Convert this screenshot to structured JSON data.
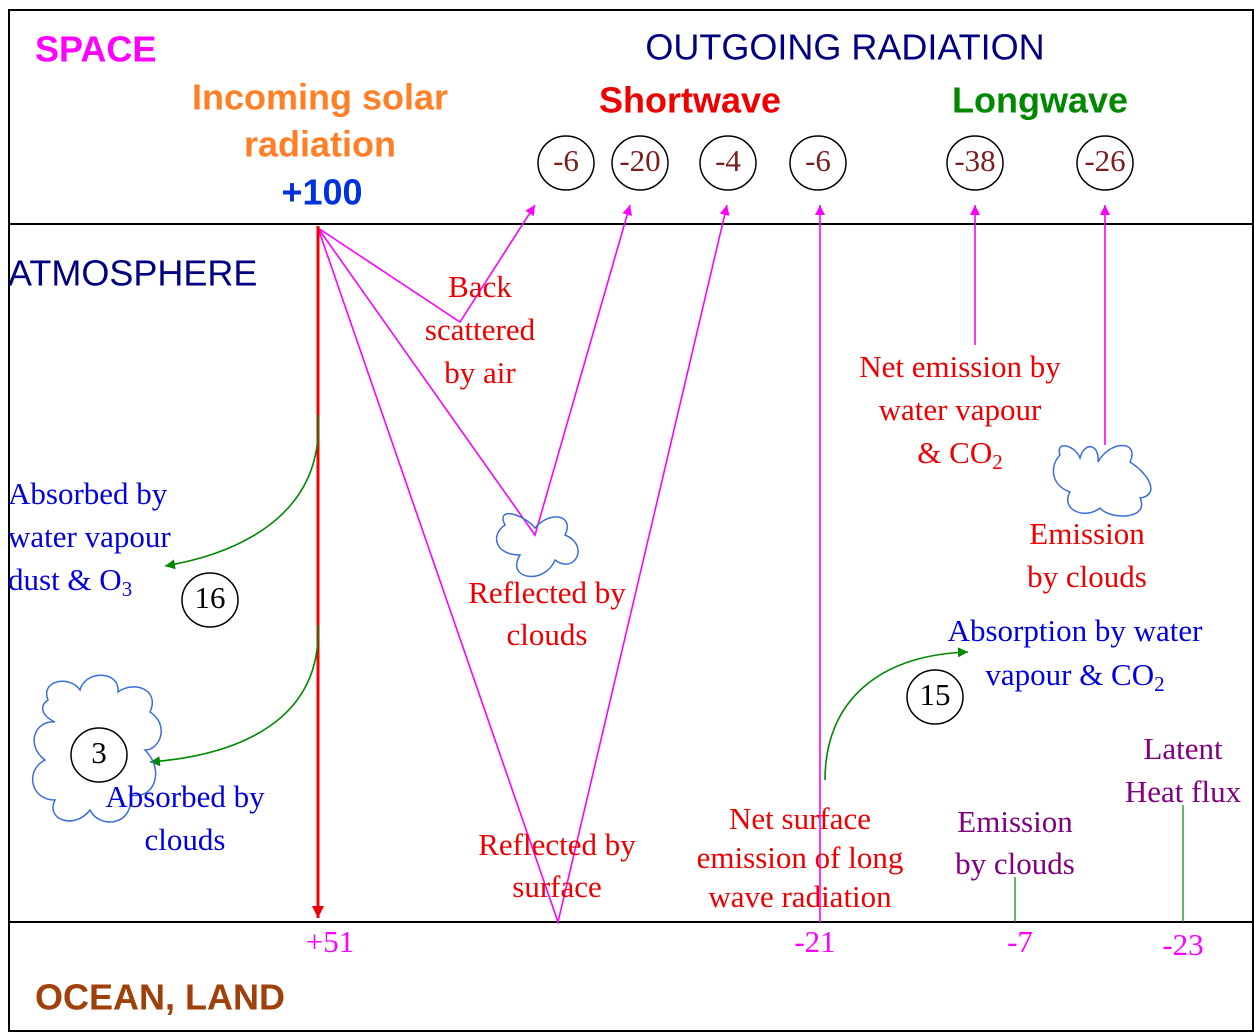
{
  "zones": {
    "space": "SPACE",
    "atmosphere": "ATMOSPHERE",
    "surface": "OCEAN, LAND"
  },
  "outgoing": {
    "title": "OUTGOING RADIATION",
    "shortwave": {
      "label": "Shortwave",
      "values": [
        "-6",
        "-20",
        "-4",
        "-6"
      ]
    },
    "longwave": {
      "label": "Longwave",
      "values": [
        "-38",
        "-26"
      ]
    }
  },
  "incoming": {
    "label": [
      "Incoming solar",
      "radiation"
    ],
    "value": "+100"
  },
  "labels": [
    {
      "lines": [
        "Back",
        "scattered",
        "by air"
      ]
    },
    {
      "lines": [
        "Reflected by",
        "clouds"
      ]
    },
    {
      "lines": [
        "Reflected by",
        "surface"
      ]
    },
    {
      "lines": [
        "Net surface",
        "emission of long",
        "wave radiation"
      ]
    },
    {
      "lines": [
        "Net emission by",
        "water vapour",
        {
          "text": "& CO",
          "sub": "2"
        }
      ]
    },
    {
      "lines": [
        "Emission",
        "by clouds"
      ]
    },
    {
      "lines": [
        "Absorbed by",
        "water vapour",
        {
          "text": "dust & O",
          "sub": "3"
        }
      ],
      "value": "16"
    },
    {
      "lines": [
        "Absorbed by",
        "clouds"
      ],
      "value": "3"
    },
    {
      "lines": [
        "Absorption by water",
        {
          "text": "vapour & CO",
          "sub": "2"
        }
      ],
      "value": "15"
    },
    {
      "lines": [
        "Latent",
        "Heat flux"
      ]
    },
    {
      "lines": [
        "Emission",
        "by clouds"
      ]
    }
  ],
  "surface_values": [
    "+51",
    "-21",
    "-7",
    "-23"
  ]
}
